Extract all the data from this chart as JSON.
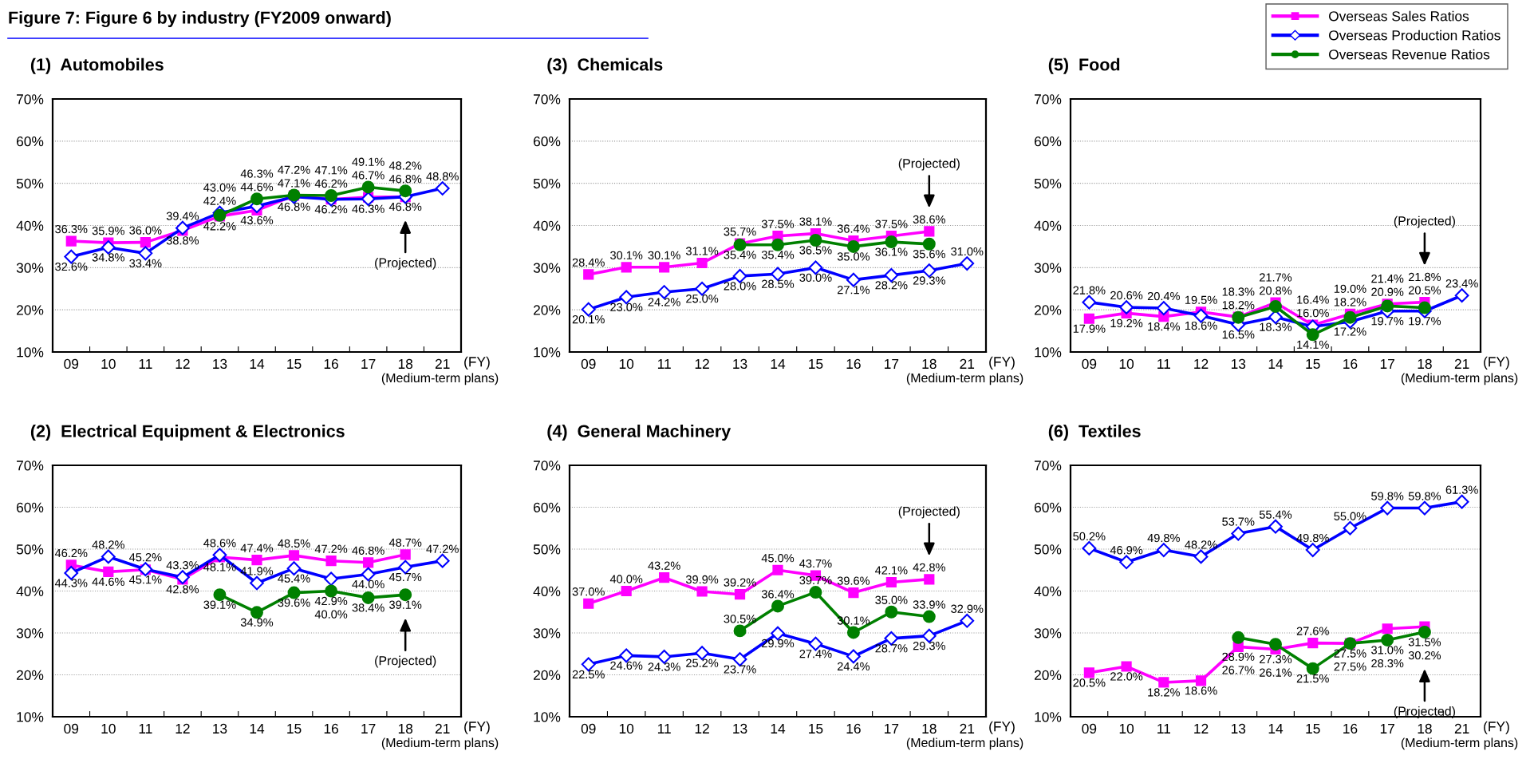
{
  "chart_data": [
    {
      "type": "line",
      "title": "(1)  Automobiles",
      "xlabel": "(FY)",
      "categories": [
        "09",
        "10",
        "11",
        "12",
        "13",
        "14",
        "15",
        "16",
        "17",
        "18",
        "21"
      ],
      "ylim": [
        10,
        70
      ],
      "yticks": [
        {
          "value": 10,
          "label": "10%"
        },
        {
          "value": 20,
          "label": "20%"
        },
        {
          "value": 30,
          "label": "30%"
        },
        {
          "value": 40,
          "label": "40%"
        },
        {
          "value": 50,
          "label": "50%"
        },
        {
          "value": 60,
          "label": "60%"
        },
        {
          "value": 70,
          "label": "70%"
        }
      ],
      "grid": "y",
      "annotations": [
        "Figure 7: Figure 6 by industry (FY2009 onward)",
        "(Projected)",
        "(Medium-term plans)"
      ],
      "series": [
        {
          "color": "#ff00ff",
          "marker": "square",
          "values": [
            36.3,
            35.9,
            36.0,
            38.8,
            42.2,
            43.6,
            47.1,
            46.2,
            46.7,
            46.8,
            null
          ],
          "value_labels": [
            "36.3%",
            "35.9%",
            "36.0%",
            "38.8%",
            "42.2%",
            "43.6%",
            "47.1%",
            "46.2%",
            "46.7%",
            "46.8%",
            null
          ]
        },
        {
          "color": "#0000ff",
          "marker": "diamond",
          "values": [
            32.6,
            34.8,
            33.4,
            39.4,
            43.0,
            44.6,
            46.8,
            46.2,
            46.3,
            46.8,
            48.8
          ],
          "value_labels": [
            "32.6%",
            "34.8%",
            "33.4%",
            "39.4%",
            "43.0%",
            "44.6%",
            "46.8%",
            "46.2%",
            "46.3%",
            "46.8%",
            "48.8%"
          ]
        },
        {
          "color": "#008000",
          "marker": "circle",
          "values": [
            null,
            null,
            null,
            null,
            42.4,
            46.3,
            47.2,
            47.1,
            49.1,
            48.2,
            null
          ],
          "value_labels": [
            null,
            null,
            null,
            null,
            "42.4%",
            "46.3%",
            "47.2%",
            "47.1%",
            "49.1%",
            "48.2%",
            null
          ]
        }
      ]
    },
    {
      "type": "line",
      "title": "(3)  Chemicals",
      "xlabel": "(FY)",
      "categories": [
        "09",
        "10",
        "11",
        "12",
        "13",
        "14",
        "15",
        "16",
        "17",
        "18",
        "21"
      ],
      "ylim": [
        10,
        70
      ],
      "yticks": [
        {
          "value": 10,
          "label": "10%"
        },
        {
          "value": 20,
          "label": "20%"
        },
        {
          "value": 30,
          "label": "30%"
        },
        {
          "value": 40,
          "label": "40%"
        },
        {
          "value": 50,
          "label": "50%"
        },
        {
          "value": 60,
          "label": "60%"
        },
        {
          "value": 70,
          "label": "70%"
        }
      ],
      "grid": "y",
      "annotations": [
        "(Projected)",
        "(Medium-term plans)"
      ],
      "series": [
        {
          "color": "#ff00ff",
          "marker": "square",
          "values": [
            28.4,
            30.1,
            30.1,
            31.1,
            35.7,
            37.5,
            38.1,
            36.4,
            37.5,
            38.6,
            null
          ],
          "value_labels": [
            "28.4%",
            "30.1%",
            "30.1%",
            "31.1%",
            "35.7%",
            "37.5%",
            "38.1%",
            "36.4%",
            "37.5%",
            "38.6%",
            null
          ]
        },
        {
          "color": "#0000ff",
          "marker": "diamond",
          "values": [
            20.1,
            23.0,
            24.2,
            25.0,
            28.0,
            28.5,
            30.0,
            27.1,
            28.2,
            29.3,
            31.0
          ],
          "value_labels": [
            "20.1%",
            "23.0%",
            "24.2%",
            "25.0%",
            "28.0%",
            "28.5%",
            "30.0%",
            "27.1%",
            "28.2%",
            "29.3%",
            "31.0%"
          ]
        },
        {
          "color": "#008000",
          "marker": "circle",
          "values": [
            null,
            null,
            null,
            null,
            35.4,
            35.4,
            36.5,
            35.0,
            36.1,
            35.6,
            null
          ],
          "value_labels": [
            null,
            null,
            null,
            null,
            "35.4%",
            "35.4%",
            "36.5%",
            "35.0%",
            "36.1%",
            "35.6%",
            null
          ]
        }
      ]
    },
    {
      "type": "line",
      "title": "(5)  Food",
      "xlabel": "(FY)",
      "categories": [
        "09",
        "10",
        "11",
        "12",
        "13",
        "14",
        "15",
        "16",
        "17",
        "18",
        "21"
      ],
      "ylim": [
        10,
        70
      ],
      "yticks": [
        {
          "value": 10,
          "label": "10%"
        },
        {
          "value": 20,
          "label": "20%"
        },
        {
          "value": 30,
          "label": "30%"
        },
        {
          "value": 40,
          "label": "40%"
        },
        {
          "value": 50,
          "label": "50%"
        },
        {
          "value": 60,
          "label": "60%"
        },
        {
          "value": 70,
          "label": "70%"
        }
      ],
      "grid": "y",
      "legend": "top right",
      "annotations": [
        "(Projected)",
        "(Medium-term plans)"
      ],
      "series": [
        {
          "name": "Overseas Sales Ratios",
          "color": "#ff00ff",
          "marker": "square",
          "values": [
            17.9,
            19.2,
            18.4,
            19.5,
            18.3,
            21.7,
            16.4,
            19.0,
            21.4,
            21.8,
            null
          ],
          "value_labels": [
            "17.9%",
            "19.2%",
            "18.4%",
            "19.5%",
            "18.3%",
            "21.7%",
            "16.4%",
            "19.0%",
            "21.4%",
            "21.8%",
            null
          ]
        },
        {
          "name": "Overseas Production Ratios",
          "color": "#0000ff",
          "marker": "diamond",
          "values": [
            21.8,
            20.6,
            20.4,
            18.6,
            16.5,
            18.3,
            16.0,
            17.2,
            19.7,
            19.7,
            23.4
          ],
          "value_labels": [
            "21.8%",
            "20.6%",
            "20.4%",
            "18.6%",
            "16.5%",
            "18.3%",
            "16.0%",
            "17.2%",
            "19.7%",
            "19.7%",
            "23.4%"
          ]
        },
        {
          "name": "Overseas Revenue Ratios",
          "color": "#008000",
          "marker": "circle",
          "values": [
            null,
            null,
            null,
            null,
            18.2,
            20.8,
            14.1,
            18.2,
            20.9,
            20.5,
            null
          ],
          "value_labels": [
            null,
            null,
            null,
            null,
            "18.2%",
            "20.8%",
            "14.1%",
            "18.2%",
            "20.9%",
            "20.5%",
            null
          ]
        }
      ]
    },
    {
      "type": "line",
      "title": "(2)  Electrical Equipment & Electronics",
      "xlabel": "(FY)",
      "categories": [
        "09",
        "10",
        "11",
        "12",
        "13",
        "14",
        "15",
        "16",
        "17",
        "18",
        "21"
      ],
      "ylim": [
        10,
        70
      ],
      "yticks": [
        {
          "value": 10,
          "label": "10%"
        },
        {
          "value": 20,
          "label": "20%"
        },
        {
          "value": 30,
          "label": "30%"
        },
        {
          "value": 40,
          "label": "40%"
        },
        {
          "value": 50,
          "label": "50%"
        },
        {
          "value": 60,
          "label": "60%"
        },
        {
          "value": 70,
          "label": "70%"
        }
      ],
      "grid": "y",
      "annotations": [
        "(Projected)",
        "(Medium-term plans)"
      ],
      "series": [
        {
          "color": "#ff00ff",
          "marker": "square",
          "values": [
            46.2,
            44.6,
            45.1,
            42.8,
            48.1,
            47.4,
            48.5,
            47.2,
            46.8,
            48.7,
            null
          ],
          "value_labels": [
            "46.2%",
            "44.6%",
            "45.1%",
            "42.8%",
            "48.1%",
            "47.4%",
            "48.5%",
            "47.2%",
            "46.8%",
            "48.7%",
            null
          ]
        },
        {
          "color": "#0000ff",
          "marker": "diamond",
          "values": [
            44.3,
            48.2,
            45.2,
            43.3,
            48.6,
            41.9,
            45.4,
            42.9,
            44.0,
            45.7,
            47.2
          ],
          "value_labels": [
            "44.3%",
            "48.2%",
            "45.2%",
            "43.3%",
            "48.6%",
            "41.9%",
            "45.4%",
            "42.9%",
            "44.0%",
            "45.7%",
            "47.2%"
          ]
        },
        {
          "color": "#008000",
          "marker": "circle",
          "values": [
            null,
            null,
            null,
            null,
            39.1,
            34.9,
            39.6,
            40.0,
            38.4,
            39.1,
            null
          ],
          "value_labels": [
            null,
            null,
            null,
            null,
            "39.1%",
            "34.9%",
            "39.6%",
            "40.0%",
            "38.4%",
            "39.1%",
            null
          ]
        }
      ]
    },
    {
      "type": "line",
      "title": "(4)  General Machinery",
      "xlabel": "(FY)",
      "categories": [
        "09",
        "10",
        "11",
        "12",
        "13",
        "14",
        "15",
        "16",
        "17",
        "18",
        "21"
      ],
      "ylim": [
        10,
        70
      ],
      "yticks": [
        {
          "value": 10,
          "label": "10%"
        },
        {
          "value": 20,
          "label": "20%"
        },
        {
          "value": 30,
          "label": "30%"
        },
        {
          "value": 40,
          "label": "40%"
        },
        {
          "value": 50,
          "label": "50%"
        },
        {
          "value": 60,
          "label": "60%"
        },
        {
          "value": 70,
          "label": "70%"
        }
      ],
      "grid": "y",
      "annotations": [
        "(Projected)",
        "(Medium-term plans)"
      ],
      "series": [
        {
          "color": "#ff00ff",
          "marker": "square",
          "values": [
            37.0,
            40.0,
            43.2,
            39.9,
            39.2,
            45.0,
            43.7,
            39.6,
            42.1,
            42.8,
            null
          ],
          "value_labels": [
            "37.0%",
            "40.0%",
            "43.2%",
            "39.9%",
            "39.2%",
            "45.0%",
            "43.7%",
            "39.6%",
            "42.1%",
            "42.8%",
            null
          ]
        },
        {
          "color": "#0000ff",
          "marker": "diamond",
          "values": [
            22.5,
            24.6,
            24.3,
            25.2,
            23.7,
            29.9,
            27.4,
            24.4,
            28.7,
            29.3,
            32.9
          ],
          "value_labels": [
            "22.5%",
            "24.6%",
            "24.3%",
            "25.2%",
            "23.7%",
            "29.9%",
            "27.4%",
            "24.4%",
            "28.7%",
            "29.3%",
            "32.9%"
          ]
        },
        {
          "color": "#008000",
          "marker": "circle",
          "values": [
            null,
            null,
            null,
            null,
            30.5,
            36.4,
            39.7,
            30.1,
            35.0,
            33.9,
            null
          ],
          "value_labels": [
            null,
            null,
            null,
            null,
            "30.5%",
            "36.4%",
            "39.7%",
            "30.1%",
            "35.0%",
            "33.9%",
            null
          ]
        }
      ]
    },
    {
      "type": "line",
      "title": "(6)  Textiles",
      "xlabel": "(FY)",
      "categories": [
        "09",
        "10",
        "11",
        "12",
        "13",
        "14",
        "15",
        "16",
        "17",
        "18",
        "21"
      ],
      "ylim": [
        10,
        70
      ],
      "yticks": [
        {
          "value": 10,
          "label": "10%"
        },
        {
          "value": 20,
          "label": "20%"
        },
        {
          "value": 30,
          "label": "30%"
        },
        {
          "value": 40,
          "label": "40%"
        },
        {
          "value": 50,
          "label": "50%"
        },
        {
          "value": 60,
          "label": "60%"
        },
        {
          "value": 70,
          "label": "70%"
        }
      ],
      "grid": "y",
      "annotations": [
        "(Projected)",
        "(Medium-term plans)"
      ],
      "series": [
        {
          "color": "#ff00ff",
          "marker": "square",
          "values": [
            20.5,
            22.0,
            18.2,
            18.6,
            26.7,
            26.1,
            27.6,
            27.5,
            31.0,
            31.5,
            null
          ],
          "value_labels": [
            "20.5%",
            "22.0%",
            "18.2%",
            "18.6%",
            "26.7%",
            "26.1%",
            "27.6%",
            "27.5%",
            "31.0%",
            "31.5%",
            null
          ]
        },
        {
          "color": "#0000ff",
          "marker": "diamond",
          "values": [
            50.2,
            46.9,
            49.8,
            48.2,
            53.7,
            55.4,
            49.8,
            55.0,
            59.8,
            59.8,
            61.3
          ],
          "value_labels": [
            "50.2%",
            "46.9%",
            "49.8%",
            "48.2%",
            "53.7%",
            "55.4%",
            "49.8%",
            "55.0%",
            "59.8%",
            "59.8%",
            "61.3%"
          ]
        },
        {
          "color": "#008000",
          "marker": "circle",
          "values": [
            null,
            null,
            null,
            null,
            28.9,
            27.3,
            21.5,
            27.5,
            28.3,
            30.2,
            null
          ],
          "value_labels": [
            null,
            null,
            null,
            null,
            "28.9%",
            "27.3%",
            "21.5%",
            "27.5%",
            "28.3%",
            "30.2%",
            null
          ]
        }
      ]
    }
  ]
}
